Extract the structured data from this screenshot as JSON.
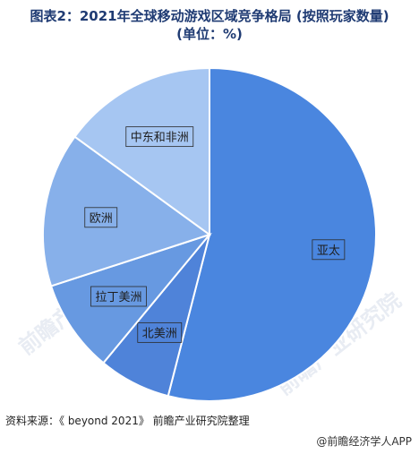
{
  "title": {
    "line1": "图表2：2021年全球移动游戏区域竞争格局 (按照玩家数量)",
    "line2": "(单位：%)"
  },
  "chart_data": {
    "type": "pie",
    "title": "图表2：2021年全球移动游戏区域竞争格局 (按照玩家数量) (单位：%)",
    "categories": [
      "亚太",
      "北美洲",
      "拉丁美洲",
      "欧洲",
      "中东和非洲"
    ],
    "values": [
      54,
      7,
      9,
      15,
      15
    ],
    "colors": [
      "#4a86df",
      "#4f83d9",
      "#6799e1",
      "#87b0ea",
      "#a6c6f2"
    ],
    "start_angle_deg": 0,
    "direction": "clockwise"
  },
  "source": "资料来源：《 beyond 2021》 前瞻产业研究院整理",
  "footer": "@前瞻经济学人APP",
  "watermark": "前瞻产业研究院"
}
